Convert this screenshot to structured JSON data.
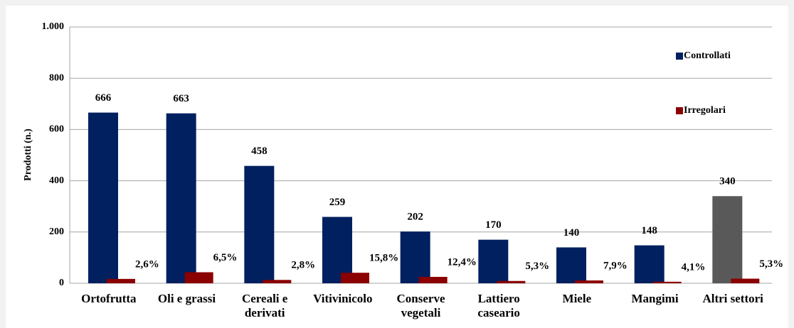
{
  "chart_data": {
    "type": "bar",
    "y_label": "Prodotti (n.)",
    "categories": [
      "Ortofrutta",
      "Oli e grassi",
      "Cereali e derivati",
      "Vitivinicolo",
      "Conserve vegetali",
      "Lattiero caseario",
      "Miele",
      "Mangimi",
      "Altri settori"
    ],
    "series": [
      {
        "name": "Controllati",
        "color": "#002060",
        "colors": [
          "#002060",
          "#002060",
          "#002060",
          "#002060",
          "#002060",
          "#002060",
          "#002060",
          "#002060",
          "#595959"
        ],
        "values": [
          666,
          663,
          458,
          259,
          202,
          170,
          140,
          148,
          340
        ]
      },
      {
        "name": "Irregolari",
        "color": "#8b0000",
        "values": [
          17,
          43,
          13,
          41,
          25,
          9,
          11,
          6,
          18
        ]
      }
    ],
    "annotations": [
      "2,6%",
      "6,5%",
      "2,8%",
      "15,8%",
      "12,4%",
      "5,3%",
      "7,9%",
      "4,1%",
      "5,3%"
    ],
    "ylim": [
      0,
      1000
    ],
    "yticks": [
      0,
      200,
      400,
      600,
      800,
      {
        "value": 1000,
        "label": "1.000"
      }
    ],
    "grid": true,
    "legend": "upper right"
  }
}
